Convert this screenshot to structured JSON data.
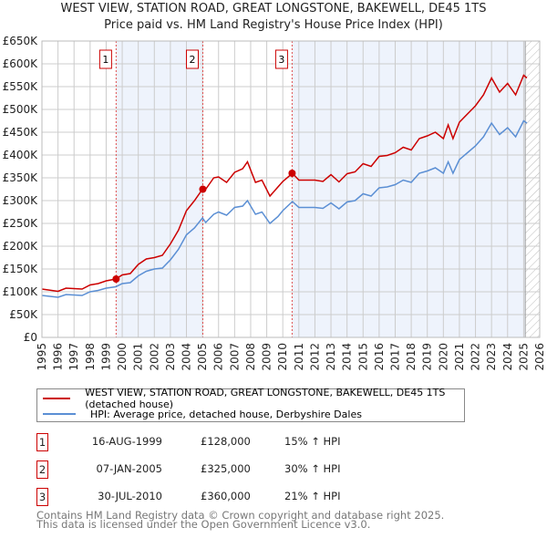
{
  "chart_data": {
    "type": "line",
    "title": "WEST VIEW, STATION ROAD, GREAT LONGSTONE, BAKEWELL, DE45 1TS",
    "subtitle": "Price paid vs. HM Land Registry's House Price Index (HPI)",
    "xlim": [
      1995,
      2026
    ],
    "ylim": [
      0,
      650000
    ],
    "yticks": [
      "£0",
      "£50K",
      "£100K",
      "£150K",
      "£200K",
      "£250K",
      "£300K",
      "£350K",
      "£400K",
      "£450K",
      "£500K",
      "£550K",
      "£600K",
      "£650K"
    ],
    "xticks": [
      "1995",
      "1996",
      "1997",
      "1998",
      "1999",
      "2000",
      "2001",
      "2002",
      "2003",
      "2004",
      "2005",
      "2006",
      "2007",
      "2008",
      "2009",
      "2010",
      "2011",
      "2012",
      "2013",
      "2014",
      "2015",
      "2016",
      "2017",
      "2018",
      "2019",
      "2020",
      "2021",
      "2022",
      "2023",
      "2024",
      "2025",
      "2026"
    ],
    "x": [
      1995,
      1996,
      1996.5,
      1997,
      1997.5,
      1998,
      1998.5,
      1999,
      1999.6,
      2000,
      2000.5,
      2001,
      2001.5,
      2002,
      2002.5,
      2003,
      2003.5,
      2004,
      2004.5,
      2005,
      2005.2,
      2005.7,
      2006,
      2006.5,
      2007,
      2007.5,
      2007.8,
      2008.3,
      2008.7,
      2009.2,
      2009.7,
      2010,
      2010.6,
      2011,
      2011.5,
      2012,
      2012.5,
      2013,
      2013.5,
      2014,
      2014.5,
      2015,
      2015.5,
      2016,
      2016.5,
      2017,
      2017.5,
      2018,
      2018.5,
      2019,
      2019.5,
      2020,
      2020.3,
      2020.6,
      2021,
      2021.5,
      2022,
      2022.5,
      2023,
      2023.5,
      2024,
      2024.5,
      2025,
      2025.2
    ],
    "series": [
      {
        "name": "WEST VIEW, STATION ROAD, GREAT LONGSTONE, BAKEWELL, DE45 1TS (detached house)",
        "color": "#cc0000",
        "values": [
          106000,
          101000,
          108000,
          107000,
          106000,
          115000,
          118000,
          124000,
          128000,
          137000,
          140000,
          160000,
          172000,
          175000,
          180000,
          205000,
          235000,
          278000,
          300000,
          325000,
          325000,
          350000,
          352000,
          340000,
          362000,
          370000,
          385000,
          340000,
          345000,
          310000,
          330000,
          342000,
          360000,
          345000,
          345000,
          345000,
          342000,
          357000,
          341000,
          359000,
          363000,
          381000,
          375000,
          397000,
          399000,
          405000,
          417000,
          411000,
          436000,
          442000,
          450000,
          436000,
          466000,
          436000,
          472000,
          490000,
          508000,
          532000,
          569000,
          538000,
          557000,
          532000,
          575000,
          569000
        ]
      },
      {
        "name": "HPI: Average price, detached house, Derbyshire Dales",
        "color": "#5b8fd4",
        "values": [
          92000,
          88000,
          94000,
          93000,
          92000,
          100000,
          103000,
          108000,
          111000,
          118000,
          120000,
          135000,
          145000,
          150000,
          152000,
          170000,
          193000,
          225000,
          240000,
          262000,
          252000,
          270000,
          275000,
          268000,
          285000,
          288000,
          300000,
          270000,
          275000,
          250000,
          265000,
          278000,
          298000,
          285000,
          285000,
          285000,
          283000,
          295000,
          282000,
          297000,
          300000,
          315000,
          310000,
          328000,
          330000,
          335000,
          345000,
          340000,
          360000,
          365000,
          372000,
          360000,
          385000,
          360000,
          390000,
          405000,
          420000,
          440000,
          470000,
          445000,
          460000,
          440000,
          475000,
          470000
        ]
      }
    ],
    "sales": [
      {
        "label": "1",
        "x": 1999.62,
        "date": "16-AUG-1999",
        "price": 128000,
        "price_text": "£128,000",
        "hpi": "15% ↑ HPI"
      },
      {
        "label": "2",
        "x": 2005.02,
        "date": "07-JAN-2005",
        "price": 325000,
        "price_text": "£325,000",
        "hpi": "30% ↑ HPI"
      },
      {
        "label": "3",
        "x": 2010.58,
        "date": "30-JUL-2010",
        "price": 360000,
        "price_text": "£360,000",
        "hpi": "21% ↑ HPI"
      }
    ],
    "forecast_start": 2025.1,
    "colors": {
      "shade": "#eef3fc",
      "grid": "#cccccc"
    }
  },
  "footer": {
    "line1": "Contains HM Land Registry data © Crown copyright and database right 2025.",
    "line2": "This data is licensed under the Open Government Licence v3.0."
  }
}
